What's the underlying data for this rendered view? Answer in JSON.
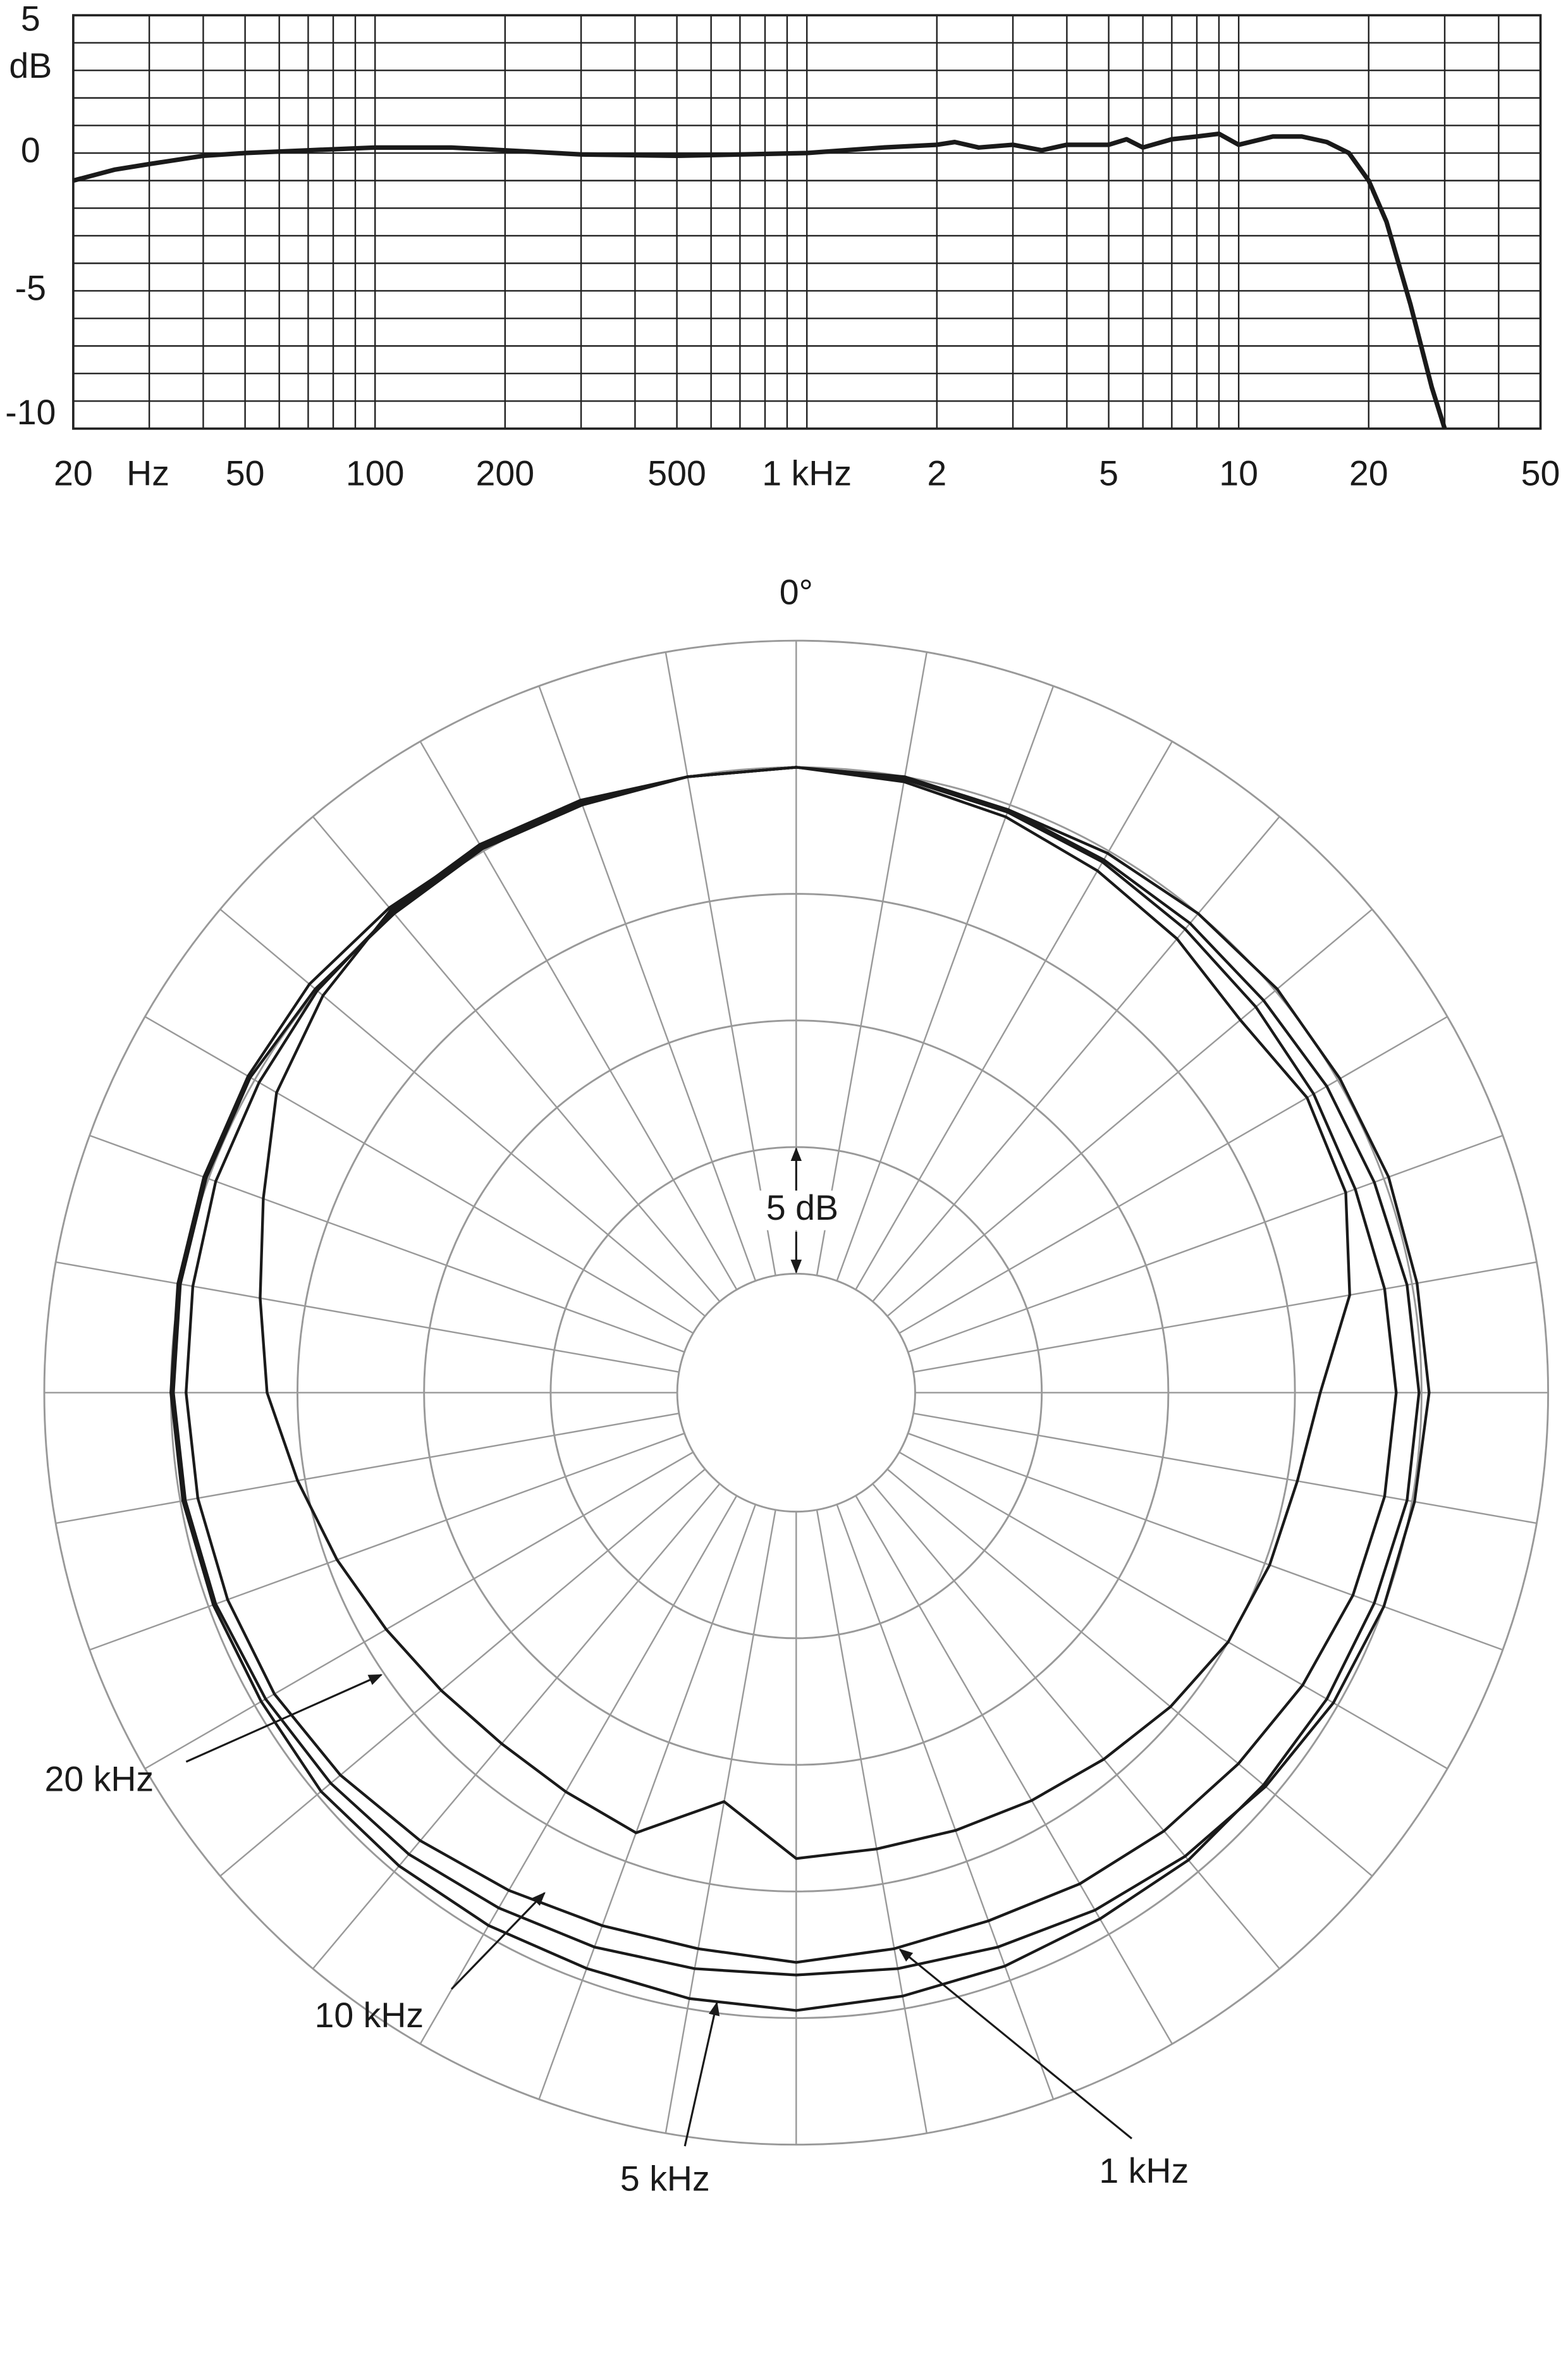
{
  "chart_data": [
    {
      "type": "line",
      "log_x": true,
      "grid": true,
      "color": "#1a1a1a",
      "x_unit": "Hz",
      "y_unit": "dB",
      "xlim": [
        20,
        50000
      ],
      "ylim": [
        -10,
        5
      ],
      "xticks": [
        20,
        50,
        100,
        200,
        500,
        {
          "value": 1000,
          "label": "1 kHz"
        },
        {
          "value": 2000,
          "label": "2"
        },
        {
          "value": 5000,
          "label": "5"
        },
        {
          "value": 10000,
          "label": "10"
        },
        {
          "value": 20000,
          "label": "20"
        },
        {
          "value": 50000,
          "label": "50"
        }
      ],
      "yticks": [
        5,
        0,
        -5,
        -10
      ],
      "xgrid": [
        20,
        30,
        40,
        50,
        60,
        70,
        80,
        90,
        100,
        200,
        300,
        400,
        500,
        600,
        700,
        800,
        900,
        1000,
        2000,
        3000,
        4000,
        5000,
        6000,
        7000,
        8000,
        9000,
        10000,
        20000,
        30000,
        40000,
        50000
      ],
      "ygrid": [
        5,
        4,
        3,
        2,
        1,
        0,
        -1,
        -2,
        -3,
        -4,
        -5,
        -6,
        -7,
        -8,
        -9,
        -10
      ],
      "x": [
        20,
        25,
        30,
        40,
        50,
        70,
        100,
        150,
        200,
        300,
        500,
        1000,
        1500,
        2000,
        2200,
        2500,
        3000,
        3500,
        4000,
        5000,
        5500,
        6000,
        7000,
        8000,
        9000,
        10000,
        12000,
        14000,
        16000,
        18000,
        20000,
        22000,
        25000,
        28000,
        30000
      ],
      "values": [
        -1.0,
        -0.6,
        -0.4,
        -0.1,
        0,
        0.1,
        0.2,
        0.2,
        0.1,
        -0.05,
        -0.1,
        0,
        0.2,
        0.3,
        0.4,
        0.2,
        0.3,
        0.1,
        0.3,
        0.3,
        0.5,
        0.2,
        0.5,
        0.6,
        0.7,
        0.3,
        0.6,
        0.6,
        0.4,
        0,
        -1,
        -2.5,
        -5.5,
        -8.5,
        -10
      ]
    },
    {
      "type": "polar",
      "title": "0°",
      "annotation": "5 dB",
      "rlim": [
        -20,
        5
      ],
      "rgrid": [
        -20,
        -15,
        -10,
        -5,
        0,
        5
      ],
      "theta": [
        0,
        10,
        20,
        30,
        40,
        50,
        60,
        70,
        80,
        90,
        100,
        110,
        120,
        130,
        140,
        150,
        160,
        170,
        180,
        190,
        200,
        210,
        220,
        230,
        240,
        250,
        260,
        270,
        280,
        290,
        300,
        310,
        320,
        330,
        340,
        350
      ],
      "series": [
        {
          "name": "20 kHz",
          "color": "#1a1a1a",
          "values": [
            0,
            -0.2,
            -0.5,
            -0.9,
            -1.3,
            -1.8,
            -1.4,
            -1.6,
            -2.5,
            -4.0,
            -4.6,
            -4.8,
            -5.0,
            -5.4,
            -5.8,
            -6.1,
            -6.3,
            -6.4,
            -6.3,
            -8.3,
            -6.2,
            -6.5,
            -6.6,
            -6.4,
            -6.0,
            -5.4,
            -4.7,
            -3.8,
            -3.2,
            -2.3,
            -1.0,
            -0.3,
            0.2,
            0.3,
            0.2,
            0
          ]
        },
        {
          "name": "10 kHz",
          "color": "#1a1a1a",
          "values": [
            0,
            -0.1,
            -0.3,
            -0.5,
            -0.8,
            -1,
            -1.1,
            -1.2,
            -1.1,
            -1,
            -1.1,
            -1.3,
            -1.6,
            -1.9,
            -2.1,
            -2.3,
            -2.5,
            -2.4,
            -2.2,
            -2.4,
            -2.3,
            -2.0,
            -1.6,
            -1.2,
            -0.9,
            -0.8,
            -0.7,
            -0.6,
            -0.5,
            -0.3,
            -0.2,
            0,
            0.1,
            0.2,
            0.1,
            0
          ]
        },
        {
          "name": "5 kHz",
          "color": "#1a1a1a",
          "values": [
            0,
            0,
            -0.2,
            -0.4,
            -0.5,
            -0.6,
            -0.5,
            -0.4,
            -0.2,
            -0.1,
            -0.2,
            -0.4,
            -0.5,
            -0.6,
            -0.6,
            -0.7,
            -0.6,
            -0.5,
            -0.3,
            -0.4,
            -0.5,
            -0.4,
            -0.3,
            -0.2,
            -0.3,
            -0.2,
            -0.1,
            0,
            0.1,
            0.2,
            0.3,
            0.4,
            0.3,
            0.2,
            0.1,
            0
          ]
        },
        {
          "name": "1 kHz",
          "color": "#1a1a1a",
          "values": [
            0,
            -0.1,
            -0.2,
            -0.1,
            0,
            0.1,
            0.1,
            0.2,
            0.2,
            0.3,
            0.1,
            0,
            -0.2,
            -0.5,
            -0.8,
            -1.1,
            -1.4,
            -1.6,
            -1.7,
            -1.6,
            -1.4,
            -1.2,
            -0.9,
            -0.7,
            -0.5,
            -0.3,
            -0.2,
            -0.1,
            0,
            0.1,
            0.2,
            0.1,
            0,
            0.1,
            0,
            0
          ]
        }
      ]
    }
  ]
}
